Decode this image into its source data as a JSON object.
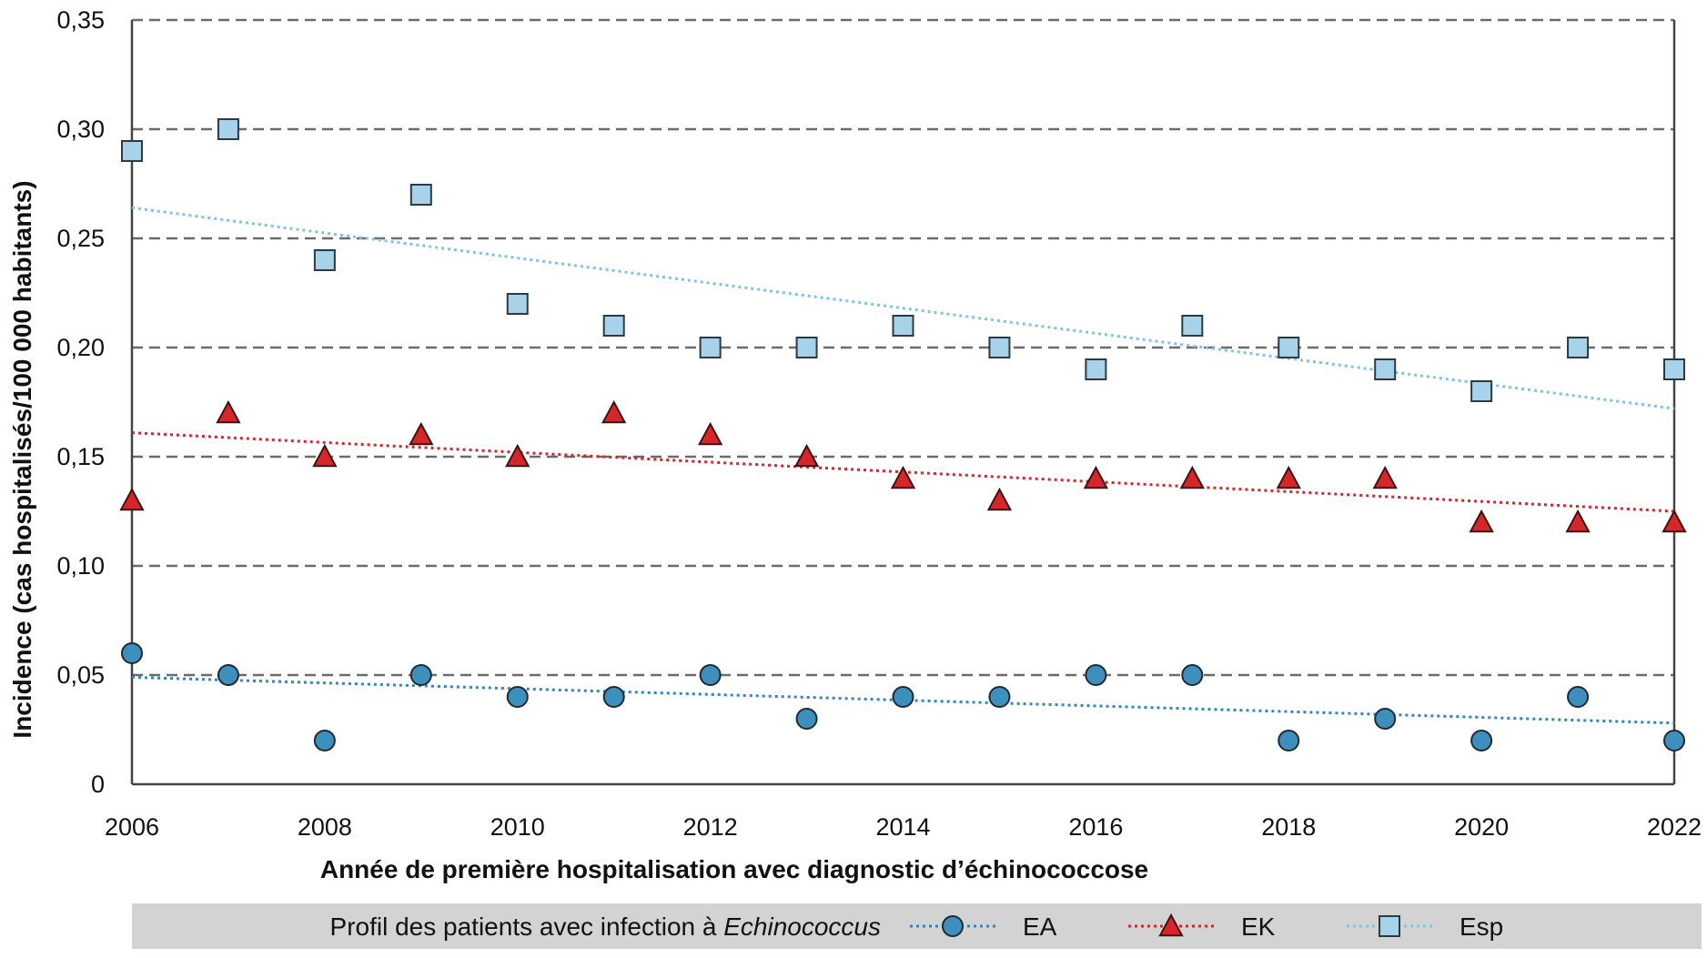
{
  "chart_data": {
    "type": "scatter",
    "title": "",
    "xlabel": "Année de première hospitalisation avec diagnostic d’échinococcose",
    "ylabel": "Incidence (cas hospitalisés/100 000 habitants)",
    "xlim": [
      2006,
      2022
    ],
    "ylim": [
      0,
      0.35
    ],
    "x_ticks": [
      2006,
      2008,
      2010,
      2012,
      2014,
      2016,
      2018,
      2020,
      2022
    ],
    "x_tick_labels": [
      "2006",
      "2008",
      "2010",
      "2012",
      "2014",
      "2016",
      "2018",
      "2020",
      "2022"
    ],
    "y_ticks": [
      0,
      0.05,
      0.1,
      0.15,
      0.2,
      0.25,
      0.3,
      0.35
    ],
    "y_tick_labels": [
      "0",
      "0,05",
      "0,10",
      "0,15",
      "0,20",
      "0,25",
      "0,30",
      "0,35"
    ],
    "grid": "horizontal dashed",
    "legend_position": "bottom",
    "legend_title_prefix": "Profil des patients avec infection à",
    "legend_title_italic": "Echinococcus",
    "x": [
      2006,
      2007,
      2008,
      2009,
      2010,
      2011,
      2012,
      2013,
      2014,
      2015,
      2016,
      2017,
      2018,
      2019,
      2020,
      2021,
      2022
    ],
    "series": [
      {
        "name": "EA",
        "marker": "circle",
        "color": "#3d8fbd",
        "trend_color": "#2f86c0",
        "values": [
          0.06,
          0.05,
          0.02,
          0.05,
          0.04,
          0.04,
          0.05,
          0.03,
          0.04,
          0.04,
          0.05,
          0.05,
          0.02,
          0.03,
          0.02,
          0.04,
          0.02
        ],
        "trend": [
          0.049,
          0.028
        ]
      },
      {
        "name": "EK",
        "marker": "triangle",
        "color": "#d7262a",
        "trend_color": "#d7262a",
        "values": [
          0.13,
          0.17,
          0.15,
          0.16,
          0.15,
          0.17,
          0.16,
          0.15,
          0.14,
          0.13,
          0.14,
          0.14,
          0.14,
          0.14,
          0.12,
          0.12,
          0.12
        ],
        "trend": [
          0.161,
          0.125
        ]
      },
      {
        "name": "Esp",
        "marker": "square",
        "color": "#a6d3ea",
        "trend_color": "#7cc4e4",
        "values": [
          0.29,
          0.3,
          0.24,
          0.27,
          0.22,
          0.21,
          0.2,
          0.2,
          0.21,
          0.2,
          0.19,
          0.21,
          0.2,
          0.19,
          0.18,
          0.2,
          0.19
        ],
        "trend": [
          0.264,
          0.172
        ]
      }
    ]
  }
}
